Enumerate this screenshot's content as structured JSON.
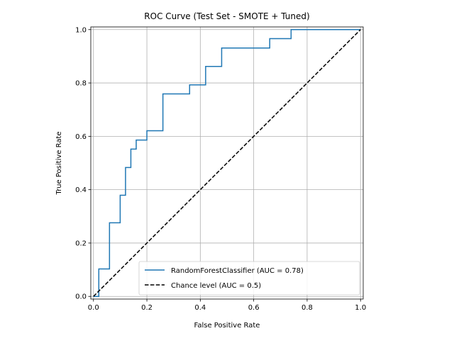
{
  "chart_data": {
    "type": "line",
    "title": "ROC Curve (Test Set - SMOTE + Tuned)",
    "xlabel": "False Positive Rate",
    "ylabel": "True Positive Rate",
    "xlim": [
      -0.01,
      1.01
    ],
    "ylim": [
      -0.01,
      1.01
    ],
    "xticks": [
      "0.0",
      "0.2",
      "0.4",
      "0.6",
      "0.8",
      "1.0"
    ],
    "yticks": [
      "0.0",
      "0.2",
      "0.4",
      "0.6",
      "0.8",
      "1.0"
    ],
    "grid": true,
    "legend_position": "lower-right",
    "series": [
      {
        "name": "RandomForestClassifier (AUC = 0.78)",
        "color": "#1f77b4",
        "style": "steps",
        "x": [
          0.0,
          0.02,
          0.02,
          0.06,
          0.06,
          0.1,
          0.1,
          0.12,
          0.12,
          0.14,
          0.14,
          0.16,
          0.16,
          0.2,
          0.2,
          0.26,
          0.26,
          0.36,
          0.36,
          0.42,
          0.42,
          0.48,
          0.48,
          0.66,
          0.66,
          0.74,
          0.74,
          1.0
        ],
        "y": [
          0.0,
          0.0,
          0.103,
          0.103,
          0.276,
          0.276,
          0.379,
          0.379,
          0.483,
          0.483,
          0.552,
          0.552,
          0.586,
          0.586,
          0.621,
          0.621,
          0.759,
          0.759,
          0.793,
          0.793,
          0.862,
          0.862,
          0.931,
          0.931,
          0.966,
          0.966,
          1.0,
          1.0
        ]
      },
      {
        "name": "Chance level (AUC = 0.5)",
        "color": "#000000",
        "style": "dashed",
        "x": [
          0.0,
          1.0
        ],
        "y": [
          0.0,
          1.0
        ]
      }
    ]
  }
}
